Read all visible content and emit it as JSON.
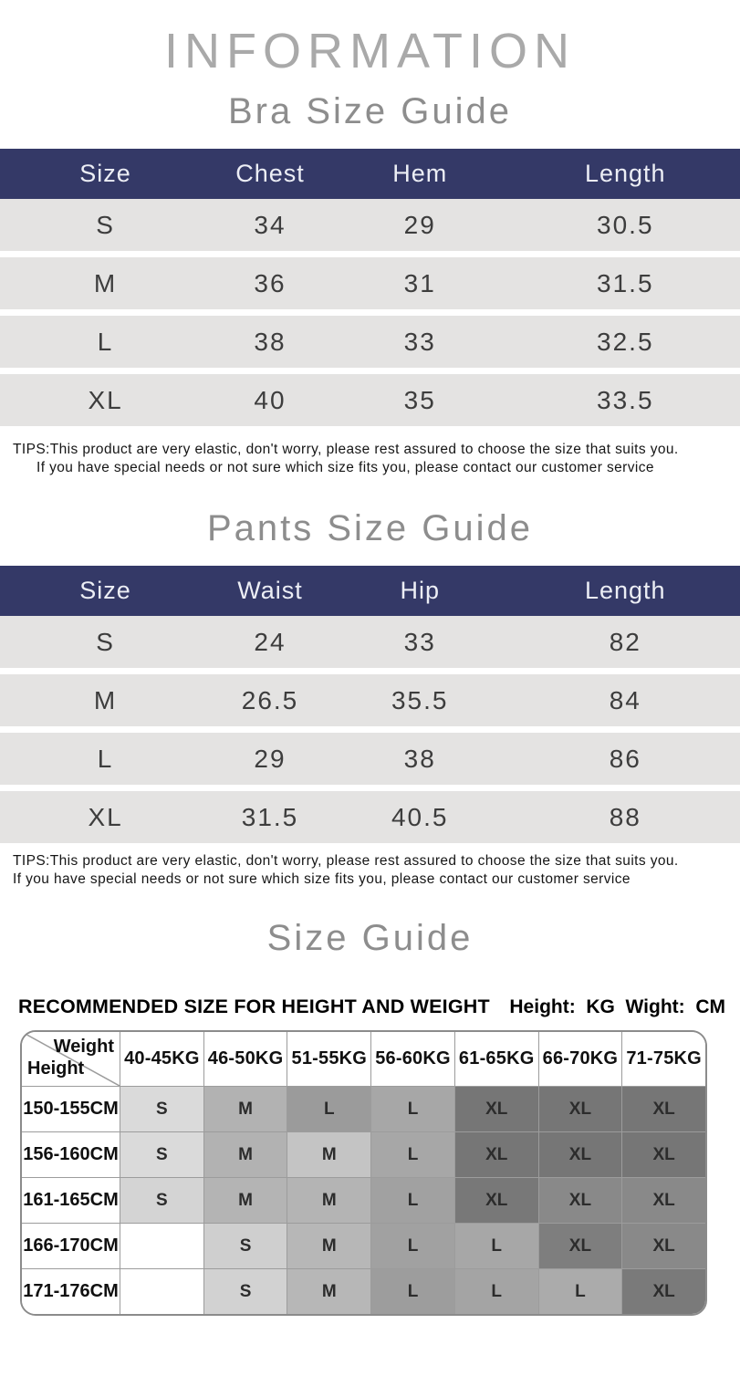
{
  "header": {
    "title": "INFORMATION"
  },
  "bra_table": {
    "title": "Bra Size Guide",
    "columns": [
      "Size",
      "Chest",
      "Hem",
      "Length"
    ],
    "rows": [
      [
        "S",
        "34",
        "29",
        "30.5"
      ],
      [
        "M",
        "36",
        "31",
        "31.5"
      ],
      [
        "L",
        "38",
        "33",
        "32.5"
      ],
      [
        "XL",
        "40",
        "35",
        "33.5"
      ]
    ],
    "tips_line1": "TIPS:This product are very elastic, don't worry, please rest assured to choose the size that suits you.",
    "tips_line2": "If you have special needs or not sure which size fits you, please contact our customer service"
  },
  "pants_table": {
    "title": "Pants Size Guide",
    "columns": [
      "Size",
      "Waist",
      "Hip",
      "Length"
    ],
    "rows": [
      [
        "S",
        "24",
        "33",
        "82"
      ],
      [
        "M",
        "26.5",
        "35.5",
        "84"
      ],
      [
        "L",
        "29",
        "38",
        "86"
      ],
      [
        "XL",
        "31.5",
        "40.5",
        "88"
      ]
    ],
    "tips_line1": "TIPS:This product are very elastic, don't worry, please rest assured to choose the size that suits you.",
    "tips_line2": "If you have special needs or not sure which size fits you, please contact our customer service"
  },
  "size_guide": {
    "title": "Size Guide",
    "heading": "RECOMMENDED SIZE FOR HEIGHT AND WEIGHT",
    "units_note": "Height:  KG  Wight:  CM",
    "corner": {
      "top_right": "Weight",
      "bottom_left": "Height"
    },
    "weight_columns": [
      "40-45KG",
      "46-50KG",
      "51-55KG",
      "56-60KG",
      "61-65KG",
      "66-70KG",
      "71-75KG"
    ],
    "height_rows": [
      {
        "label": "150-155CM",
        "cells": [
          {
            "size": "S",
            "color": "#dadada"
          },
          {
            "size": "M",
            "color": "#b2b2b2"
          },
          {
            "size": "L",
            "color": "#9b9b9b"
          },
          {
            "size": "L",
            "color": "#a7a7a7"
          },
          {
            "size": "XL",
            "color": "#767676"
          },
          {
            "size": "XL",
            "color": "#767676"
          },
          {
            "size": "XL",
            "color": "#767676"
          }
        ]
      },
      {
        "label": "156-160CM",
        "cells": [
          {
            "size": "S",
            "color": "#dadada"
          },
          {
            "size": "M",
            "color": "#b2b2b2"
          },
          {
            "size": "M",
            "color": "#c4c4c4"
          },
          {
            "size": "L",
            "color": "#a7a7a7"
          },
          {
            "size": "XL",
            "color": "#767676"
          },
          {
            "size": "XL",
            "color": "#767676"
          },
          {
            "size": "XL",
            "color": "#767676"
          }
        ]
      },
      {
        "label": "161-165CM",
        "cells": [
          {
            "size": "S",
            "color": "#d4d4d4"
          },
          {
            "size": "M",
            "color": "#b4b4b4"
          },
          {
            "size": "M",
            "color": "#b4b4b4"
          },
          {
            "size": "L",
            "color": "#a1a1a1"
          },
          {
            "size": "XL",
            "color": "#787878"
          },
          {
            "size": "XL",
            "color": "#898989"
          },
          {
            "size": "XL",
            "color": "#898989"
          }
        ]
      },
      {
        "label": "166-170CM",
        "cells": [
          {
            "size": "",
            "color": "#ffffff"
          },
          {
            "size": "S",
            "color": "#cfcfcf"
          },
          {
            "size": "M",
            "color": "#b7b7b7"
          },
          {
            "size": "L",
            "color": "#a1a1a1"
          },
          {
            "size": "L",
            "color": "#a7a7a7"
          },
          {
            "size": "XL",
            "color": "#7e7e7e"
          },
          {
            "size": "XL",
            "color": "#898989"
          }
        ]
      },
      {
        "label": "171-176CM",
        "cells": [
          {
            "size": "",
            "color": "#ffffff"
          },
          {
            "size": "S",
            "color": "#d2d2d2"
          },
          {
            "size": "M",
            "color": "#b7b7b7"
          },
          {
            "size": "L",
            "color": "#9d9d9d"
          },
          {
            "size": "L",
            "color": "#a4a4a4"
          },
          {
            "size": "L",
            "color": "#ababab"
          },
          {
            "size": "XL",
            "color": "#7a7a7a"
          }
        ]
      }
    ]
  },
  "colors": {
    "table_header_bg": "#343967",
    "table_header_text": "#eceef5",
    "table_row_bg": "#e4e3e2",
    "title_gray": "#a9a9a9",
    "subtitle_gray": "#8d8d8d",
    "matrix_border": "#9c9c9c"
  }
}
